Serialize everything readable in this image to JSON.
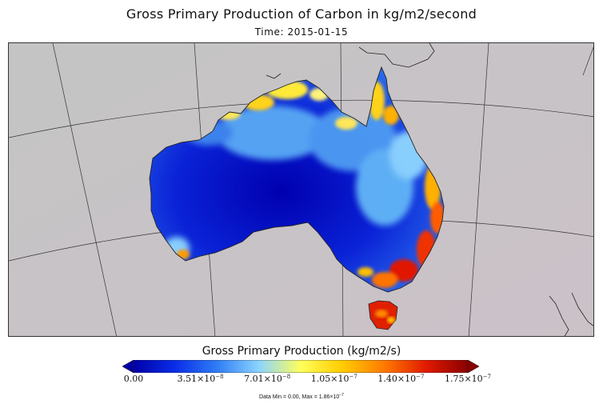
{
  "figure": {
    "title": "Gross Primary Production of Carbon in kg/m2/second",
    "time_label": "Time: 2015-01-15"
  },
  "map": {
    "region": "Australia",
    "projection": "conic-like graticule",
    "background_color": "#c7c7c7",
    "land_outside_data_color": "#c9c4c6"
  },
  "colorbar": {
    "title": "Gross Primary Production (kg/m2/s)",
    "min": 0,
    "max": 1.75e-07,
    "extend": "both",
    "colors": [
      "#0000a8",
      "#0a2ee8",
      "#2f7df5",
      "#8cd4ff",
      "#ffff5a",
      "#ffcc00",
      "#ff7a00",
      "#e11a00",
      "#8b0000"
    ],
    "tick_labels": [
      {
        "mant": "0.00",
        "exp": ""
      },
      {
        "mant": "3.51×10",
        "exp": "−8"
      },
      {
        "mant": "7.01×10",
        "exp": "−8"
      },
      {
        "mant": "1.05×10",
        "exp": "−7"
      },
      {
        "mant": "1.40×10",
        "exp": "−7"
      },
      {
        "mant": "1.75×10",
        "exp": "−7"
      }
    ],
    "data_range": {
      "min_text": "Data Min = 0.00, Max = 1.86×10",
      "max_exp": "−7"
    }
  }
}
